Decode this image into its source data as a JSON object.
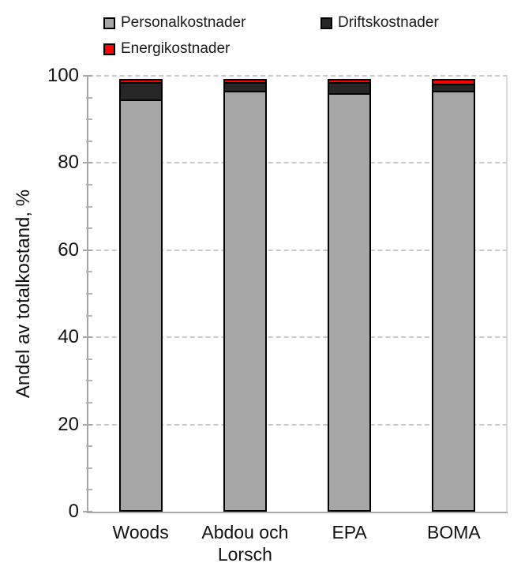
{
  "legend": {
    "items": [
      {
        "label": "Personalkostnader",
        "color": "#a6a6a6"
      },
      {
        "label": "Driftskostnader",
        "color": "#262626"
      },
      {
        "label": "Energikostnader",
        "color": "#ff0000"
      }
    ]
  },
  "chart_data": {
    "type": "bar",
    "stacked": true,
    "title": "",
    "xlabel": "",
    "ylabel": "Andel av totalkostand, %",
    "ylim": [
      0,
      100
    ],
    "yticks": [
      0,
      20,
      40,
      60,
      80,
      100
    ],
    "minor_tick_step": 5,
    "grid": "horizontal dashed at major ticks",
    "legend_position": "top",
    "categories": [
      "Woods",
      "Abdou och Lorsch",
      "EPA",
      "BOMA"
    ],
    "series": [
      {
        "name": "Personalkostnader",
        "color": "#a6a6a6",
        "values": [
          94.5,
          96.5,
          96.0,
          96.5
        ]
      },
      {
        "name": "Driftskostnader",
        "color": "#262626",
        "values": [
          4.5,
          2.5,
          3.0,
          2.0
        ]
      },
      {
        "name": "Energikostnader",
        "color": "#ff0000",
        "values": [
          1.0,
          1.0,
          1.0,
          1.5
        ]
      }
    ]
  },
  "colors": {
    "gridline": "#c9c9c9",
    "axis": "#a6a6a6",
    "plot_right_border": "#d9d9d9",
    "segment_border": "#000000",
    "text": "#111111"
  }
}
